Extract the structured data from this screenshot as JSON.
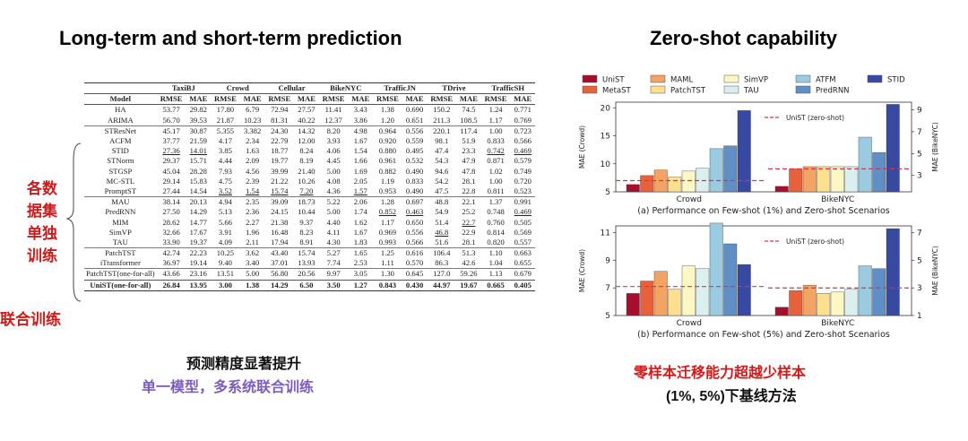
{
  "left_title": "Long-term and short-term prediction",
  "right_title": "Zero-shot capability",
  "side_label_a": [
    "各数",
    "据集",
    "单独",
    "训练"
  ],
  "side_label_b": "联合训练",
  "caption_left_1": "预测精度显著提升",
  "caption_left_2": "单一模型，多系统联合训练",
  "caption_right_1": "零样本迁移能力超越少样本",
  "caption_right_2": "(1%, 5%)下基线方法",
  "colors": {
    "red_text": "#d11a1a",
    "purple_text": "#7d5cbf"
  },
  "chart_data": [
    {
      "type": "table",
      "groups": [
        "TaxiBJ",
        "Crowd",
        "Cellular",
        "BikeNYC",
        "TrafficJN",
        "TDrive",
        "TrafficSH"
      ],
      "metrics": [
        "RMSE",
        "MAE"
      ],
      "model_header": "Model",
      "rows": [
        {
          "model": "HA",
          "values": [
            "53.77",
            "29.82",
            "17.80",
            "6.79",
            "72.94",
            "27.57",
            "11.41",
            "3.43",
            "1.38",
            "0.690",
            "150.2",
            "74.5",
            "1.24",
            "0.771"
          ],
          "sep": false
        },
        {
          "model": "ARIMA",
          "values": [
            "56.70",
            "39.53",
            "21.87",
            "10.23",
            "81.31",
            "40.22",
            "12.37",
            "3.86",
            "1.20",
            "0.651",
            "211.3",
            "108.5",
            "1.17",
            "0.769"
          ],
          "sep": false
        },
        {
          "model": "STResNet",
          "values": [
            "45.17",
            "30.87",
            "5.355",
            "3.382",
            "24.30",
            "14.32",
            "8.20",
            "4.98",
            "0.964",
            "0.556",
            "220.1",
            "117.4",
            "1.00",
            "0.723"
          ],
          "sep": true
        },
        {
          "model": "ACFM",
          "values": [
            "37.77",
            "21.59",
            "4.17",
            "2.34",
            "22.79",
            "12.00",
            "3.93",
            "1.67",
            "0.920",
            "0.559",
            "98.1",
            "51.9",
            "0.833",
            "0.566"
          ],
          "sep": false
        },
        {
          "model": "STID",
          "values": [
            "27.36",
            "14.01",
            "3.85",
            "1.63",
            "18.77",
            "8.24",
            "4.06",
            "1.54",
            "0.880",
            "0.495",
            "47.4",
            "23.3",
            "0.742",
            "0.469"
          ],
          "sep": false
        },
        {
          "model": "STNorm",
          "values": [
            "29.37",
            "15.71",
            "4.44",
            "2.09",
            "19.77",
            "8.19",
            "4.45",
            "1.66",
            "0.961",
            "0.532",
            "54.3",
            "47.9",
            "0.871",
            "0.579"
          ],
          "sep": false
        },
        {
          "model": "STGSP",
          "values": [
            "45.04",
            "28.28",
            "7.93",
            "4.56",
            "39.99",
            "21.40",
            "5.00",
            "1.69",
            "0.882",
            "0.490",
            "94.6",
            "47.8",
            "1.02",
            "0.749"
          ],
          "sep": false
        },
        {
          "model": "MC-STL",
          "values": [
            "29.14",
            "15.83",
            "4.75",
            "2.39",
            "21.22",
            "10.26",
            "4.08",
            "2.05",
            "1.19",
            "0.833",
            "54.2",
            "28.1",
            "1.00",
            "0.720"
          ],
          "sep": false
        },
        {
          "model": "PromptST",
          "values": [
            "27.44",
            "14.54",
            "3.52",
            "1.54",
            "15.74",
            "7.20",
            "4.36",
            "1.57",
            "0.953",
            "0.490",
            "47.5",
            "22.8",
            "0.811",
            "0.523"
          ],
          "sep": false
        },
        {
          "model": "MAU",
          "values": [
            "38.14",
            "20.13",
            "4.94",
            "2.35",
            "39.09",
            "18.73",
            "5.22",
            "2.06",
            "1.28",
            "0.697",
            "48.8",
            "22.1",
            "1.37",
            "0.991"
          ],
          "sep": true
        },
        {
          "model": "PredRNN",
          "values": [
            "27.50",
            "14.29",
            "5.13",
            "2.36",
            "24.15",
            "10.44",
            "5.00",
            "1.74",
            "0.852",
            "0.463",
            "54.9",
            "25.2",
            "0.748",
            "0.469"
          ],
          "sep": false
        },
        {
          "model": "MIM",
          "values": [
            "28.62",
            "14.77",
            "5.66",
            "2.27",
            "21.38",
            "9.37",
            "4.40",
            "1.62",
            "1.17",
            "0.650",
            "51.4",
            "22.7",
            "0.760",
            "0.505"
          ],
          "sep": false
        },
        {
          "model": "SimVP",
          "values": [
            "32.66",
            "17.67",
            "3.91",
            "1.96",
            "16.48",
            "8.23",
            "4.11",
            "1.67",
            "0.969",
            "0.556",
            "46.8",
            "22.9",
            "0.814",
            "0.569"
          ],
          "sep": false
        },
        {
          "model": "TAU",
          "values": [
            "33.90",
            "19.37",
            "4.09",
            "2.11",
            "17.94",
            "8.91",
            "4.30",
            "1.83",
            "0.993",
            "0.566",
            "51.6",
            "28.1",
            "0.820",
            "0.557"
          ],
          "sep": false
        },
        {
          "model": "PatchTST",
          "values": [
            "42.74",
            "22.23",
            "10.25",
            "3.62",
            "43.40",
            "15.74",
            "5.27",
            "1.65",
            "1.25",
            "0.616",
            "106.4",
            "51.3",
            "1.10",
            "0.663"
          ],
          "sep": true
        },
        {
          "model": "iTransformer",
          "values": [
            "36.97",
            "19.14",
            "9.40",
            "3.40",
            "37.01",
            "13.93",
            "7.74",
            "2.53",
            "1.11",
            "0.570",
            "86.3",
            "42.6",
            "1.04",
            "0.655"
          ],
          "sep": false
        },
        {
          "model": "PatchTST(one-for-all)",
          "values": [
            "43.66",
            "23.16",
            "13.51",
            "5.00",
            "56.80",
            "20.56",
            "9.97",
            "3.05",
            "1.30",
            "0.645",
            "127.0",
            "59.26",
            "1.13",
            "0.679"
          ],
          "sep": true
        },
        {
          "model": "UniST(one-for-all)",
          "values": [
            "26.84",
            "13.95",
            "3.00",
            "1.38",
            "14.29",
            "6.50",
            "3.50",
            "1.27",
            "0.843",
            "0.430",
            "44.97",
            "19.67",
            "0.665",
            "0.405"
          ],
          "sep": false,
          "best": true
        }
      ],
      "underlined": [
        "STID.0",
        "STID.1",
        "STID.12",
        "STID.13",
        "PromptST.2",
        "PromptST.3",
        "PromptST.4",
        "PromptST.5",
        "PromptST.7",
        "PredRNN.8",
        "PredRNN.9",
        "MIM.11",
        "SimVP.10",
        "PredRNN.13"
      ]
    },
    {
      "type": "bar",
      "legend": [
        "UniST",
        "MAML",
        "SimVP",
        "ATFM",
        "STID",
        "MetaST",
        "PatchTST",
        "TAU",
        "PredRNN"
      ],
      "series_colors": {
        "UniST": "#a50f2d",
        "MetaST": "#e8613b",
        "MAML": "#f4a462",
        "PatchTST": "#fcdf8f",
        "SimVP": "#fdf7c4",
        "TAU": "#dcefef",
        "ATFM": "#9acbe0",
        "PredRNN": "#5f8fc4",
        "STID": "#3749a1"
      },
      "bar_order": [
        "UniST",
        "MetaST",
        "MAML",
        "PatchTST",
        "SimVP",
        "TAU",
        "ATFM",
        "PredRNN",
        "STID"
      ],
      "reference_label": "UniST (zero-shot)",
      "charts": [
        {
          "caption": "(a) Performance on Few-shot (1%) and Zero-shot Scenarios",
          "categories": [
            "Crowd",
            "BikeNYC"
          ],
          "ylabel_left": "MAE (Crowd)",
          "ylim_left": [
            5,
            21
          ],
          "yticks_left": [
            "5",
            "10",
            "15",
            "20"
          ],
          "ylabel_right": "MAE (BikeNYC)",
          "ylim_right": [
            1.5,
            9.7
          ],
          "yticks_right": [
            "3",
            "5",
            "7",
            "9"
          ],
          "crowd_values": [
            6.3,
            7.9,
            8.9,
            7.6,
            8.7,
            9.2,
            12.7,
            13.2,
            19.5
          ],
          "bike_values": [
            2.0,
            3.6,
            3.8,
            3.8,
            3.8,
            3.8,
            6.5,
            5.1,
            9.5
          ],
          "ref_crowd": 7.0,
          "ref_bike": 3.6
        },
        {
          "caption": "(b) Performance on Few-shot (5%) and Zero-shot Scenarios",
          "categories": [
            "Crowd",
            "BikeNYC"
          ],
          "ylabel_left": "MAE (Crowd)",
          "ylim_left": [
            5,
            11.5
          ],
          "yticks_left": [
            "5",
            "7",
            "9",
            "11"
          ],
          "ylabel_right": "MAE (BikeNYC)",
          "ylim_right": [
            1,
            7.5
          ],
          "yticks_right": [
            "1",
            "3",
            "5",
            "7"
          ],
          "crowd_values": [
            6.6,
            7.5,
            8.2,
            6.9,
            8.6,
            8.4,
            11.7,
            10.2,
            8.7
          ],
          "bike_values": [
            1.6,
            2.8,
            3.2,
            2.6,
            2.7,
            2.9,
            4.6,
            4.4,
            7.3
          ],
          "ref_crowd": 7.1,
          "ref_bike": 3.0
        }
      ]
    }
  ]
}
